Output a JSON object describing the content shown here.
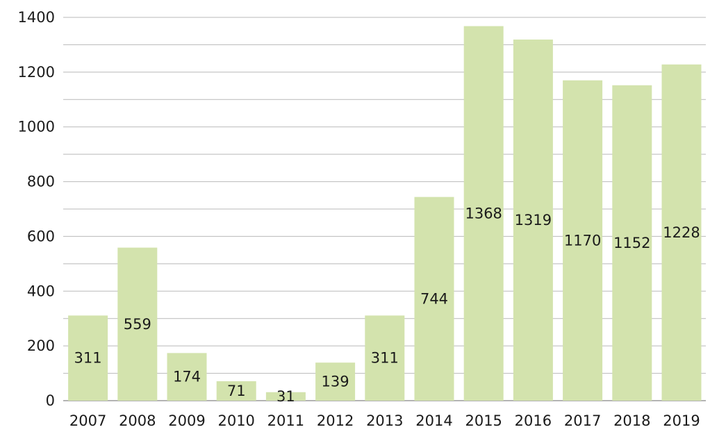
{
  "chart_data": {
    "type": "bar",
    "categories": [
      "2007",
      "2008",
      "2009",
      "2010",
      "2011",
      "2012",
      "2013",
      "2014",
      "2015",
      "2016",
      "2017",
      "2018",
      "2019"
    ],
    "values": [
      311,
      559,
      174,
      71,
      31,
      139,
      311,
      744,
      1368,
      1319,
      1170,
      1152,
      1228
    ],
    "data_labels": [
      "311",
      "559",
      "174",
      "71",
      "31",
      "139",
      "311",
      "744",
      "1368",
      "1319",
      "1170",
      "1152",
      "1228"
    ],
    "y_ticks": [
      "0",
      "200",
      "400",
      "600",
      "800",
      "1000",
      "1200",
      "1400"
    ],
    "y_tick_values": [
      0,
      200,
      400,
      600,
      800,
      1000,
      1200,
      1400
    ],
    "ylim": [
      0,
      1400
    ],
    "minor_grid_step": 100,
    "grid": true,
    "title": "",
    "xlabel": "",
    "ylabel": "",
    "bar_color": "#d3e3ad",
    "grid_color": "#b9b9b9"
  }
}
